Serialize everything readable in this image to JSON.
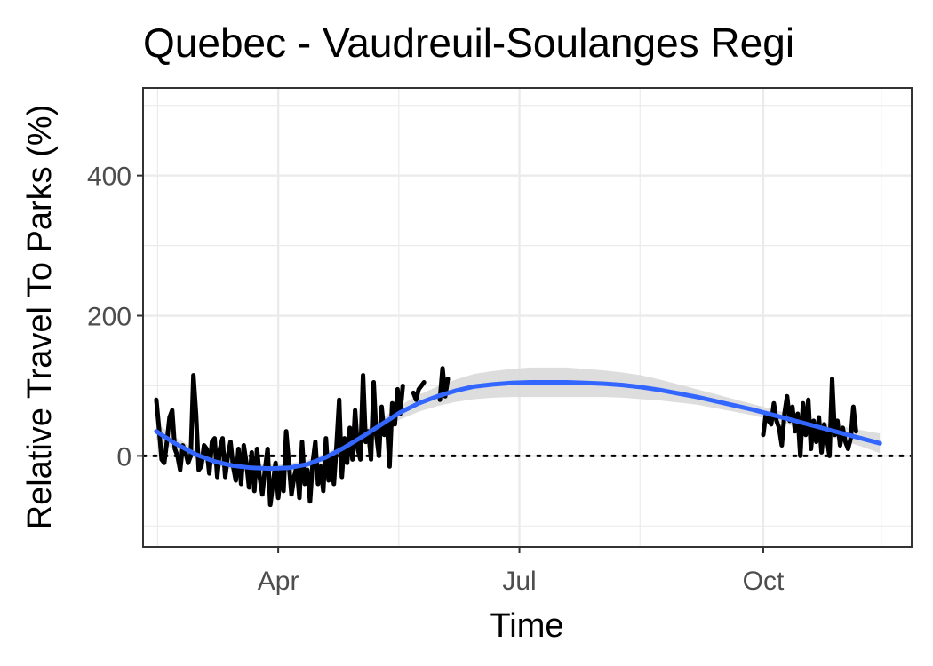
{
  "chart_data": {
    "type": "line",
    "title": "Quebec - Vaudreuil-Soulanges Regi",
    "xlabel": "Time",
    "ylabel": "Relative Travel To Parks (%)",
    "x_ticks": [
      {
        "label": "Apr",
        "date": "2020-04-01"
      },
      {
        "label": "Jul",
        "date": "2020-07-01"
      },
      {
        "label": "Oct",
        "date": "2020-10-01"
      }
    ],
    "y_ticks": [
      0,
      200,
      400
    ],
    "xlim": [
      "2020-02-10",
      "2020-11-26"
    ],
    "ylim": [
      -130,
      525
    ],
    "grid": true,
    "reference_line": {
      "y": 0,
      "style": "dotted"
    },
    "colors": {
      "observed": "#000000",
      "trend": "#3366ff",
      "confidence_band": "#d9d9d9"
    },
    "series": [
      {
        "style": "observed",
        "segments": [
          [
            [
              "2020-02-15",
              80
            ],
            [
              "2020-02-16",
              40
            ],
            [
              "2020-02-17",
              -5
            ],
            [
              "2020-02-18",
              -10
            ],
            [
              "2020-02-19",
              20
            ],
            [
              "2020-02-20",
              55
            ],
            [
              "2020-02-21",
              65
            ],
            [
              "2020-02-22",
              10
            ],
            [
              "2020-02-23",
              0
            ],
            [
              "2020-02-24",
              -20
            ],
            [
              "2020-02-25",
              15
            ],
            [
              "2020-02-26",
              5
            ],
            [
              "2020-02-27",
              -10
            ],
            [
              "2020-02-28",
              0
            ],
            [
              "2020-02-29",
              115
            ],
            [
              "2020-03-01",
              60
            ],
            [
              "2020-03-02",
              -20
            ],
            [
              "2020-03-03",
              -15
            ],
            [
              "2020-03-04",
              15
            ],
            [
              "2020-03-05",
              10
            ],
            [
              "2020-03-06",
              -25
            ],
            [
              "2020-03-07",
              20
            ],
            [
              "2020-03-08",
              25
            ],
            [
              "2020-03-09",
              -30
            ],
            [
              "2020-03-10",
              10
            ],
            [
              "2020-03-11",
              25
            ],
            [
              "2020-03-12",
              -30
            ],
            [
              "2020-03-13",
              0
            ],
            [
              "2020-03-14",
              20
            ],
            [
              "2020-03-15",
              -15
            ],
            [
              "2020-03-16",
              -35
            ],
            [
              "2020-03-17",
              10
            ],
            [
              "2020-03-18",
              -40
            ],
            [
              "2020-03-19",
              15
            ],
            [
              "2020-03-20",
              -10
            ],
            [
              "2020-03-21",
              -45
            ],
            [
              "2020-03-22",
              5
            ],
            [
              "2020-03-23",
              -50
            ],
            [
              "2020-03-24",
              10
            ],
            [
              "2020-03-25",
              -30
            ],
            [
              "2020-03-26",
              -55
            ],
            [
              "2020-03-27",
              -20
            ],
            [
              "2020-03-28",
              10
            ],
            [
              "2020-03-29",
              -70
            ],
            [
              "2020-03-30",
              -40
            ],
            [
              "2020-03-31",
              -10
            ],
            [
              "2020-04-01",
              -60
            ],
            [
              "2020-04-02",
              -20
            ],
            [
              "2020-04-03",
              -50
            ],
            [
              "2020-04-04",
              35
            ],
            [
              "2020-04-05",
              -10
            ],
            [
              "2020-04-06",
              -55
            ],
            [
              "2020-04-07",
              -30
            ],
            [
              "2020-04-08",
              -15
            ],
            [
              "2020-04-09",
              -60
            ],
            [
              "2020-04-10",
              20
            ],
            [
              "2020-04-11",
              -40
            ],
            [
              "2020-04-12",
              -20
            ],
            [
              "2020-04-13",
              -65
            ],
            [
              "2020-04-14",
              -10
            ],
            [
              "2020-04-15",
              20
            ],
            [
              "2020-04-16",
              -40
            ],
            [
              "2020-04-17",
              -15
            ],
            [
              "2020-04-18",
              -50
            ],
            [
              "2020-04-19",
              25
            ],
            [
              "2020-04-20",
              -35
            ],
            [
              "2020-04-21",
              0
            ],
            [
              "2020-04-22",
              -40
            ],
            [
              "2020-04-23",
              15
            ],
            [
              "2020-04-24",
              80
            ],
            [
              "2020-04-25",
              -30
            ],
            [
              "2020-04-26",
              25
            ],
            [
              "2020-04-27",
              -10
            ],
            [
              "2020-04-28",
              40
            ],
            [
              "2020-04-29",
              -5
            ],
            [
              "2020-04-30",
              65
            ],
            [
              "2020-05-01",
              10
            ],
            [
              "2020-05-02",
              -5
            ],
            [
              "2020-05-03",
              115
            ],
            [
              "2020-05-04",
              20
            ],
            [
              "2020-05-05",
              35
            ],
            [
              "2020-05-06",
              -5
            ],
            [
              "2020-05-07",
              105
            ],
            [
              "2020-05-08",
              30
            ],
            [
              "2020-05-09",
              0
            ],
            [
              "2020-05-10",
              70
            ],
            [
              "2020-05-11",
              30
            ],
            [
              "2020-05-12",
              50
            ],
            [
              "2020-05-13",
              -15
            ],
            [
              "2020-05-14",
              75
            ],
            [
              "2020-05-15",
              45
            ],
            [
              "2020-05-16",
              95
            ],
            [
              "2020-05-17",
              60
            ],
            [
              "2020-05-18",
              100
            ]
          ],
          [
            [
              "2020-05-22",
              90
            ],
            [
              "2020-05-23",
              80
            ],
            [
              "2020-05-24",
              95
            ],
            [
              "2020-05-25",
              100
            ],
            [
              "2020-05-26",
              105
            ]
          ],
          [
            [
              "2020-06-01",
              80
            ],
            [
              "2020-06-02",
              125
            ],
            [
              "2020-06-03",
              85
            ],
            [
              "2020-06-04",
              110
            ]
          ],
          [
            [
              "2020-10-01",
              30
            ],
            [
              "2020-10-02",
              60
            ],
            [
              "2020-10-03",
              50
            ],
            [
              "2020-10-04",
              45
            ],
            [
              "2020-10-05",
              75
            ],
            [
              "2020-10-06",
              50
            ],
            [
              "2020-10-07",
              40
            ],
            [
              "2020-10-08",
              15
            ],
            [
              "2020-10-09",
              60
            ],
            [
              "2020-10-10",
              85
            ],
            [
              "2020-10-11",
              50
            ],
            [
              "2020-10-12",
              70
            ],
            [
              "2020-10-13",
              35
            ],
            [
              "2020-10-14",
              60
            ],
            [
              "2020-10-15",
              0
            ],
            [
              "2020-10-16",
              75
            ],
            [
              "2020-10-17",
              30
            ],
            [
              "2020-10-18",
              80
            ],
            [
              "2020-10-19",
              10
            ],
            [
              "2020-10-20",
              50
            ],
            [
              "2020-10-21",
              20
            ],
            [
              "2020-10-22",
              55
            ],
            [
              "2020-10-23",
              5
            ],
            [
              "2020-10-24",
              45
            ],
            [
              "2020-10-25",
              25
            ],
            [
              "2020-10-26",
              0
            ],
            [
              "2020-10-27",
              110
            ],
            [
              "2020-10-28",
              30
            ],
            [
              "2020-10-29",
              50
            ],
            [
              "2020-10-30",
              15
            ],
            [
              "2020-10-31",
              40
            ],
            [
              "2020-11-01",
              20
            ],
            [
              "2020-11-02",
              10
            ],
            [
              "2020-11-03",
              25
            ],
            [
              "2020-11-04",
              70
            ],
            [
              "2020-11-05",
              35
            ]
          ]
        ]
      },
      {
        "style": "trend",
        "points": [
          [
            "2020-02-15",
            35
          ],
          [
            "2020-02-22",
            18
          ],
          [
            "2020-03-01",
            2
          ],
          [
            "2020-03-08",
            -8
          ],
          [
            "2020-03-15",
            -14
          ],
          [
            "2020-03-22",
            -17
          ],
          [
            "2020-03-29",
            -18
          ],
          [
            "2020-04-05",
            -17
          ],
          [
            "2020-04-12",
            -12
          ],
          [
            "2020-04-19",
            -2
          ],
          [
            "2020-04-26",
            12
          ],
          [
            "2020-05-03",
            28
          ],
          [
            "2020-05-10",
            45
          ],
          [
            "2020-05-17",
            62
          ],
          [
            "2020-05-24",
            75
          ],
          [
            "2020-05-31",
            85
          ],
          [
            "2020-06-07",
            93
          ],
          [
            "2020-06-14",
            99
          ],
          [
            "2020-06-21",
            102
          ],
          [
            "2020-06-28",
            104
          ],
          [
            "2020-07-05",
            105
          ],
          [
            "2020-07-12",
            105
          ],
          [
            "2020-07-19",
            105
          ],
          [
            "2020-07-26",
            104
          ],
          [
            "2020-08-02",
            103
          ],
          [
            "2020-08-09",
            101
          ],
          [
            "2020-08-16",
            98
          ],
          [
            "2020-08-23",
            94
          ],
          [
            "2020-08-30",
            89
          ],
          [
            "2020-09-06",
            84
          ],
          [
            "2020-09-13",
            78
          ],
          [
            "2020-09-20",
            72
          ],
          [
            "2020-09-27",
            66
          ],
          [
            "2020-10-04",
            59
          ],
          [
            "2020-10-11",
            52
          ],
          [
            "2020-10-18",
            45
          ],
          [
            "2020-10-25",
            38
          ],
          [
            "2020-11-01",
            31
          ],
          [
            "2020-11-08",
            24
          ],
          [
            "2020-11-14",
            18
          ]
        ],
        "band_halfwidth": [
          12,
          9,
          7,
          6,
          6,
          6,
          6,
          6,
          6,
          6,
          6,
          7,
          8,
          10,
          12,
          14,
          16,
          18,
          19,
          20,
          21,
          21,
          21,
          20,
          19,
          18,
          17,
          15,
          13,
          11,
          10,
          9,
          8,
          8,
          8,
          8,
          9,
          10,
          12,
          14
        ]
      }
    ]
  }
}
